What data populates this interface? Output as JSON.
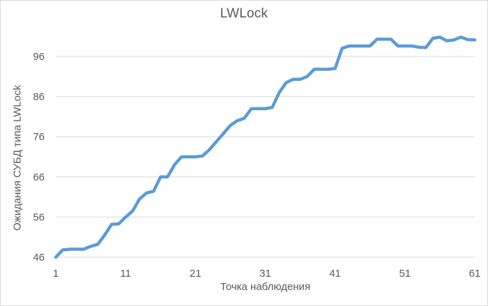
{
  "chart": {
    "colors": {
      "line": "#5B9BD5",
      "text": "#595959",
      "grid": "#D9D9D9",
      "axis": "#D9D9D9",
      "background": "#FFFFFF",
      "border": "#D9D9D9"
    }
  },
  "chart_data": {
    "type": "line",
    "title": "LWLock",
    "xlabel": "Точка наблюдения",
    "ylabel": "Ожидания СУБД типа LWLock",
    "series_name": "LWLock",
    "legend": "none",
    "grid": "horizontal",
    "xlim": [
      1,
      61
    ],
    "ylim": [
      46,
      102
    ],
    "x_ticks": [
      1,
      11,
      21,
      31,
      41,
      51,
      61
    ],
    "y_ticks": [
      46,
      56,
      66,
      76,
      86,
      96
    ],
    "x": [
      1,
      2,
      3,
      4,
      5,
      6,
      7,
      8,
      9,
      10,
      11,
      12,
      13,
      14,
      15,
      16,
      17,
      18,
      19,
      20,
      21,
      22,
      23,
      24,
      25,
      26,
      27,
      28,
      29,
      30,
      31,
      32,
      33,
      34,
      35,
      36,
      37,
      38,
      39,
      40,
      41,
      42,
      43,
      44,
      45,
      46,
      47,
      48,
      49,
      50,
      51,
      52,
      53,
      54,
      55,
      56,
      57,
      58,
      59,
      60,
      61
    ],
    "y": [
      46,
      47.8,
      48,
      48,
      48,
      48.7,
      49.2,
      51.5,
      54.2,
      54.3,
      56,
      57.5,
      60.5,
      62,
      62.4,
      66,
      66,
      69,
      71,
      71,
      71,
      71.2,
      72.8,
      74.8,
      76.8,
      78.8,
      80,
      80.6,
      83,
      83,
      83,
      83.3,
      87,
      89.5,
      90.3,
      90.3,
      91,
      92.8,
      92.8,
      92.8,
      93,
      98,
      98.6,
      98.6,
      98.6,
      98.6,
      100.3,
      100.3,
      100.3,
      98.6,
      98.6,
      98.6,
      98.3,
      98.2,
      100.5,
      100.8,
      99.9,
      100.1,
      100.8,
      100.2,
      100.1
    ]
  }
}
